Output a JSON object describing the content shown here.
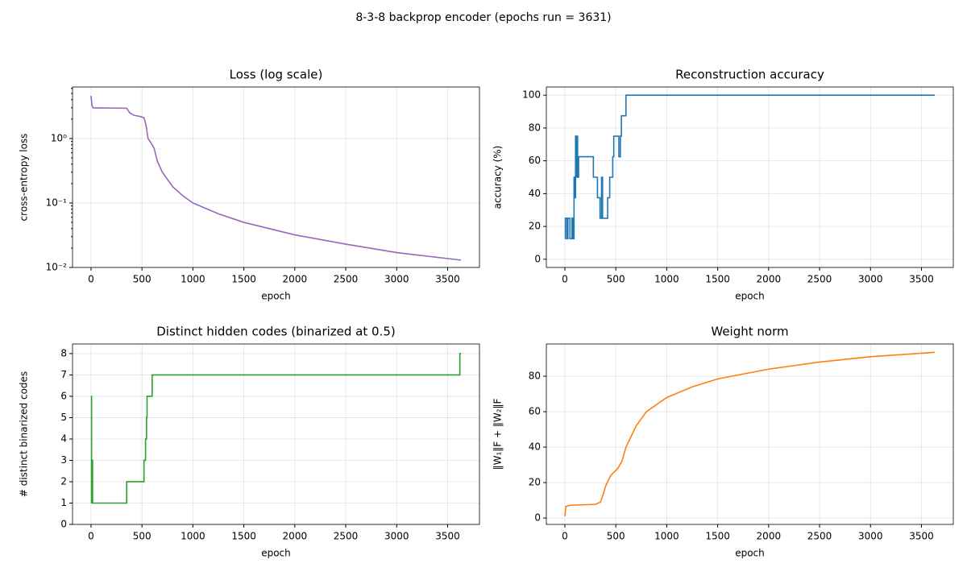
{
  "title": "8-3-8 backprop encoder (epochs run = 3631)",
  "chart_data": [
    {
      "type": "line",
      "title": "Loss (log scale)",
      "x_label": "epoch",
      "y_label": "cross-entropy loss",
      "log_y": true,
      "grid": true,
      "xlim": [
        -181.55,
        3812.55
      ],
      "xticks": [
        0,
        500,
        1000,
        1500,
        2000,
        2500,
        3000,
        3500
      ],
      "ylim": [
        0.01,
        6.3
      ],
      "yticks": [
        {
          "value": 0.01,
          "label": "10⁻²"
        },
        {
          "value": 0.1,
          "label": "10⁻¹"
        },
        {
          "value": 1,
          "label": "10⁰"
        }
      ],
      "series": [
        {
          "color": "#9467bd",
          "x": [
            0,
            10,
            20,
            100,
            200,
            350,
            380,
            420,
            480,
            520,
            540,
            560,
            600,
            620,
            650,
            700,
            800,
            900,
            1000,
            1250,
            1500,
            1750,
            2000,
            2500,
            3000,
            3631
          ],
          "values": [
            4.6,
            3.2,
            3.0,
            2.98,
            2.97,
            2.95,
            2.5,
            2.3,
            2.2,
            2.1,
            1.6,
            1.0,
            0.8,
            0.7,
            0.45,
            0.3,
            0.18,
            0.13,
            0.1,
            0.068,
            0.05,
            0.04,
            0.032,
            0.023,
            0.017,
            0.013
          ]
        }
      ]
    },
    {
      "type": "line",
      "title": "Reconstruction accuracy",
      "x_label": "epoch",
      "y_label": "accuracy (%)",
      "grid": true,
      "xlim": [
        -181.55,
        3812.55
      ],
      "xticks": [
        0,
        500,
        1000,
        1500,
        2000,
        2500,
        3000,
        3500
      ],
      "ylim": [
        -5,
        105
      ],
      "yticks": [
        0,
        20,
        40,
        60,
        80,
        100
      ],
      "series": [
        {
          "color": "#1f77b4",
          "x": [
            0,
            5,
            5,
            20,
            20,
            30,
            30,
            50,
            50,
            70,
            70,
            80,
            80,
            90,
            90,
            100,
            100,
            105,
            105,
            112,
            112,
            118,
            118,
            125,
            125,
            135,
            135,
            280,
            280,
            320,
            320,
            345,
            345,
            360,
            360,
            370,
            370,
            420,
            420,
            440,
            440,
            470,
            470,
            480,
            480,
            530,
            530,
            545,
            545,
            555,
            555,
            600,
            600,
            3631
          ],
          "values": [
            12.5,
            12.5,
            25,
            25,
            12.5,
            12.5,
            25,
            25,
            12.5,
            12.5,
            25,
            25,
            12.5,
            12.5,
            50,
            50,
            37.5,
            37.5,
            75,
            75,
            50,
            50,
            75,
            75,
            50,
            50,
            62.5,
            62.5,
            50,
            50,
            37.5,
            37.5,
            25,
            25,
            50,
            50,
            25,
            25,
            37.5,
            37.5,
            50,
            50,
            62.5,
            62.5,
            75,
            75,
            62.5,
            62.5,
            75,
            75,
            87.5,
            87.5,
            100,
            100
          ]
        }
      ]
    },
    {
      "type": "line",
      "title": "Distinct hidden codes (binarized at 0.5)",
      "x_label": "epoch",
      "y_label": "# distinct binarized codes",
      "grid": true,
      "xlim": [
        -181.55,
        3812.55
      ],
      "xticks": [
        0,
        500,
        1000,
        1500,
        2000,
        2500,
        3000,
        3500
      ],
      "ylim": [
        0,
        8.45
      ],
      "yticks": [
        0,
        1,
        2,
        3,
        4,
        5,
        6,
        7,
        8
      ],
      "series": [
        {
          "color": "#2ca02c",
          "x": [
            0,
            5,
            5,
            10,
            10,
            15,
            15,
            350,
            350,
            520,
            520,
            535,
            535,
            545,
            545,
            550,
            550,
            600,
            600,
            3620,
            3620,
            3631
          ],
          "values": [
            6,
            6,
            1,
            1,
            3,
            3,
            1,
            1,
            2,
            2,
            3,
            3,
            4,
            4,
            5,
            5,
            6,
            6,
            7,
            7,
            8,
            8
          ]
        }
      ]
    },
    {
      "type": "line",
      "title": "Weight norm",
      "x_label": "epoch",
      "y_label": "‖W₁‖F + ‖W₂‖F",
      "grid": true,
      "xlim": [
        -181.55,
        3812.55
      ],
      "xticks": [
        0,
        500,
        1000,
        1500,
        2000,
        2500,
        3000,
        3500
      ],
      "ylim": [
        -3.6,
        98.2
      ],
      "yticks": [
        0,
        20,
        40,
        60,
        80
      ],
      "series": [
        {
          "color": "#ff7f0e",
          "x": [
            0,
            10,
            50,
            300,
            350,
            380,
            400,
            450,
            520,
            560,
            600,
            650,
            700,
            800,
            1000,
            1250,
            1500,
            2000,
            2500,
            3000,
            3631
          ],
          "values": [
            1,
            6.5,
            7.2,
            7.7,
            9,
            14,
            18,
            24,
            28,
            32,
            40,
            46,
            52,
            60,
            68,
            74,
            78.5,
            84,
            88,
            91,
            93.5
          ]
        }
      ]
    }
  ]
}
